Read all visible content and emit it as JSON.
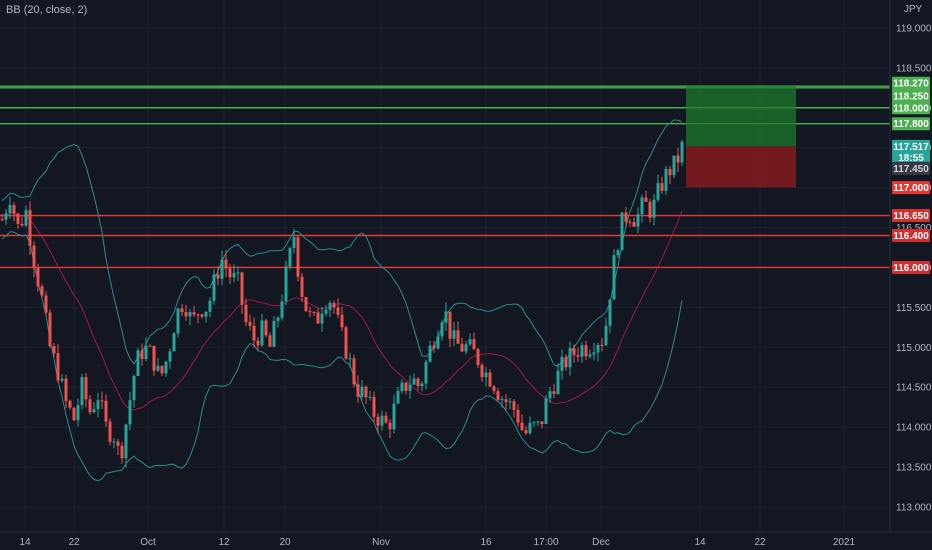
{
  "indicator": {
    "label": "BB (20, close, 2)"
  },
  "currency": "JPY",
  "colors": {
    "background": "#131722",
    "up": "#26a69a",
    "down": "#ef5350",
    "band": "#2a8c8c",
    "basis": "#c2185b",
    "green_line": "#4caf50",
    "red_line": "#e53935"
  },
  "chart_data": {
    "type": "candlestick",
    "y_ticks": [
      "113.000",
      "113.500",
      "114.000",
      "114.500",
      "115.000",
      "115.500",
      "116.000",
      "116.500",
      "117.000",
      "117.500",
      "118.000",
      "118.500",
      "119.000"
    ],
    "x_ticks": [
      {
        "label": "14",
        "x": 25
      },
      {
        "label": "22",
        "x": 74
      },
      {
        "label": "Oct",
        "x": 148
      },
      {
        "label": "12",
        "x": 224
      },
      {
        "label": "20",
        "x": 285
      },
      {
        "label": "Nov",
        "x": 381
      },
      {
        "label": "16",
        "x": 486
      },
      {
        "label": "17:00",
        "x": 546
      },
      {
        "label": "Dec",
        "x": 601
      },
      {
        "label": "14",
        "x": 700
      },
      {
        "label": "22",
        "x": 760
      },
      {
        "label": "2021",
        "x": 844
      }
    ],
    "horizontal_levels": [
      {
        "value": 118.27,
        "label": "118.270",
        "color": "green"
      },
      {
        "value": 118.25,
        "label": "118.250",
        "color": "green"
      },
      {
        "value": 118.0,
        "label": "118.000",
        "color": "green"
      },
      {
        "value": 117.8,
        "label": "117.800",
        "color": "green"
      },
      {
        "value": 116.65,
        "label": "116.650",
        "color": "red"
      },
      {
        "value": 116.4,
        "label": "116.400",
        "color": "red"
      },
      {
        "value": 116.0,
        "label": "116.000",
        "color": "red"
      }
    ],
    "price_badges": [
      {
        "label": "117.517",
        "kind": "last"
      },
      {
        "label": "18:55",
        "kind": "countdown"
      },
      {
        "label": "117.450",
        "kind": "gray"
      },
      {
        "label": "117.000",
        "kind": "stop"
      }
    ],
    "position_box": {
      "entry": 117.517,
      "target": 118.27,
      "stop": 117.0
    },
    "price_path": [
      {
        "x": 2,
        "p": 116.6
      },
      {
        "x": 10,
        "p": 116.9
      },
      {
        "x": 18,
        "p": 116.5
      },
      {
        "x": 26,
        "p": 116.7
      },
      {
        "x": 34,
        "p": 116.1
      },
      {
        "x": 42,
        "p": 115.6
      },
      {
        "x": 50,
        "p": 115.0
      },
      {
        "x": 58,
        "p": 114.7
      },
      {
        "x": 66,
        "p": 114.3
      },
      {
        "x": 74,
        "p": 114.1
      },
      {
        "x": 82,
        "p": 114.5
      },
      {
        "x": 90,
        "p": 114.2
      },
      {
        "x": 98,
        "p": 114.4
      },
      {
        "x": 106,
        "p": 114.0
      },
      {
        "x": 114,
        "p": 113.9
      },
      {
        "x": 120,
        "p": 113.6
      },
      {
        "x": 128,
        "p": 114.2
      },
      {
        "x": 136,
        "p": 114.8
      },
      {
        "x": 144,
        "p": 115.0
      },
      {
        "x": 152,
        "p": 114.9
      },
      {
        "x": 160,
        "p": 114.6
      },
      {
        "x": 168,
        "p": 114.9
      },
      {
        "x": 176,
        "p": 115.4
      },
      {
        "x": 184,
        "p": 115.6
      },
      {
        "x": 192,
        "p": 115.3
      },
      {
        "x": 200,
        "p": 115.5
      },
      {
        "x": 208,
        "p": 115.5
      },
      {
        "x": 216,
        "p": 115.9
      },
      {
        "x": 222,
        "p": 116.1
      },
      {
        "x": 230,
        "p": 115.9
      },
      {
        "x": 238,
        "p": 115.8
      },
      {
        "x": 246,
        "p": 115.3
      },
      {
        "x": 254,
        "p": 115.1
      },
      {
        "x": 262,
        "p": 115.2
      },
      {
        "x": 270,
        "p": 115.0
      },
      {
        "x": 278,
        "p": 115.4
      },
      {
        "x": 286,
        "p": 115.9
      },
      {
        "x": 294,
        "p": 116.4
      },
      {
        "x": 300,
        "p": 115.8
      },
      {
        "x": 308,
        "p": 115.4
      },
      {
        "x": 316,
        "p": 115.3
      },
      {
        "x": 324,
        "p": 115.6
      },
      {
        "x": 332,
        "p": 115.6
      },
      {
        "x": 340,
        "p": 115.2
      },
      {
        "x": 348,
        "p": 114.9
      },
      {
        "x": 356,
        "p": 114.5
      },
      {
        "x": 364,
        "p": 114.4
      },
      {
        "x": 372,
        "p": 114.2
      },
      {
        "x": 380,
        "p": 114.1
      },
      {
        "x": 388,
        "p": 114.0
      },
      {
        "x": 396,
        "p": 114.3
      },
      {
        "x": 404,
        "p": 114.5
      },
      {
        "x": 412,
        "p": 114.6
      },
      {
        "x": 420,
        "p": 114.5
      },
      {
        "x": 428,
        "p": 114.9
      },
      {
        "x": 436,
        "p": 115.2
      },
      {
        "x": 444,
        "p": 115.5
      },
      {
        "x": 452,
        "p": 115.1
      },
      {
        "x": 460,
        "p": 115.0
      },
      {
        "x": 468,
        "p": 115.0
      },
      {
        "x": 476,
        "p": 114.9
      },
      {
        "x": 484,
        "p": 114.7
      },
      {
        "x": 492,
        "p": 114.6
      },
      {
        "x": 500,
        "p": 114.4
      },
      {
        "x": 508,
        "p": 114.3
      },
      {
        "x": 516,
        "p": 114.2
      },
      {
        "x": 524,
        "p": 113.9
      },
      {
        "x": 532,
        "p": 114.0
      },
      {
        "x": 540,
        "p": 114.0
      },
      {
        "x": 548,
        "p": 114.4
      },
      {
        "x": 556,
        "p": 114.6
      },
      {
        "x": 564,
        "p": 114.8
      },
      {
        "x": 572,
        "p": 114.9
      },
      {
        "x": 580,
        "p": 115.0
      },
      {
        "x": 588,
        "p": 115.0
      },
      {
        "x": 596,
        "p": 115.1
      },
      {
        "x": 604,
        "p": 115.1
      },
      {
        "x": 612,
        "p": 115.9
      },
      {
        "x": 620,
        "p": 116.5
      },
      {
        "x": 628,
        "p": 116.7
      },
      {
        "x": 636,
        "p": 116.6
      },
      {
        "x": 644,
        "p": 116.8
      },
      {
        "x": 652,
        "p": 116.7
      },
      {
        "x": 660,
        "p": 117.0
      },
      {
        "x": 668,
        "p": 117.2
      },
      {
        "x": 676,
        "p": 117.3
      },
      {
        "x": 682,
        "p": 117.5
      }
    ]
  }
}
